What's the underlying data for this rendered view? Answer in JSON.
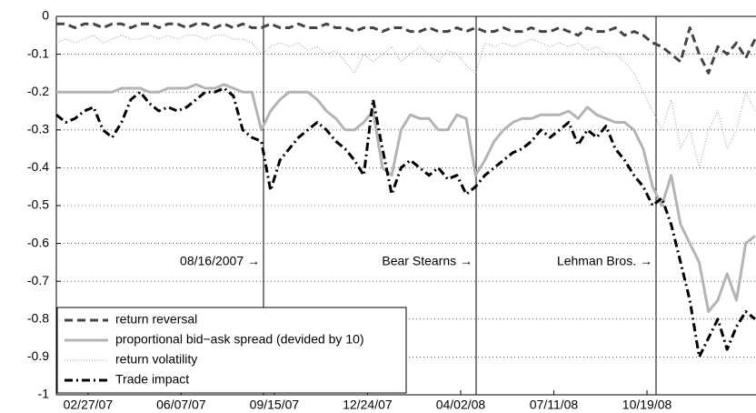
{
  "chart_data": {
    "type": "line",
    "x": [
      "2007-01-24",
      "2007-02-03",
      "2007-02-13",
      "2007-02-23",
      "2007-03-05",
      "2007-03-15",
      "2007-03-25",
      "2007-04-04",
      "2007-04-14",
      "2007-04-24",
      "2007-05-04",
      "2007-05-14",
      "2007-05-24",
      "2007-06-03",
      "2007-06-13",
      "2007-06-23",
      "2007-07-03",
      "2007-07-13",
      "2007-07-23",
      "2007-08-02",
      "2007-08-12",
      "2007-08-22",
      "2007-09-01",
      "2007-09-11",
      "2007-09-21",
      "2007-10-01",
      "2007-10-11",
      "2007-10-21",
      "2007-10-31",
      "2007-11-10",
      "2007-11-20",
      "2007-11-30",
      "2007-12-10",
      "2007-12-20",
      "2007-12-30",
      "2008-01-09",
      "2008-01-19",
      "2008-01-29",
      "2008-02-08",
      "2008-02-18",
      "2008-02-28",
      "2008-03-09",
      "2008-03-19",
      "2008-03-29",
      "2008-04-08",
      "2008-04-18",
      "2008-04-28",
      "2008-05-08",
      "2008-05-18",
      "2008-05-28",
      "2008-06-07",
      "2008-06-17",
      "2008-06-27",
      "2008-07-07",
      "2008-07-17",
      "2008-07-27",
      "2008-08-06",
      "2008-08-16",
      "2008-08-26",
      "2008-09-05",
      "2008-09-15",
      "2008-09-25",
      "2008-10-05",
      "2008-10-15",
      "2008-10-25",
      "2008-11-04",
      "2008-11-14",
      "2008-11-24",
      "2008-12-04",
      "2008-12-14",
      "2008-12-24",
      "2009-01-03",
      "2009-01-13",
      "2009-01-23",
      "2009-02-02",
      "2009-02-12"
    ],
    "xlim": [
      "2007-01-24",
      "2009-02-13"
    ],
    "xticks": [
      {
        "value": "2007-02-27",
        "label": "02/27/07"
      },
      {
        "value": "2007-06-07",
        "label": "06/07/07"
      },
      {
        "value": "2007-09-15",
        "label": "09/15/07"
      },
      {
        "value": "2007-12-24",
        "label": "12/24/07"
      },
      {
        "value": "2008-04-02",
        "label": "04/02/08"
      },
      {
        "value": "2008-07-11",
        "label": "07/11/08"
      },
      {
        "value": "2008-10-19",
        "label": "10/19/08"
      }
    ],
    "ylim": [
      -1,
      0
    ],
    "yticks": [
      0,
      -0.1,
      -0.2,
      -0.3,
      -0.4,
      -0.5,
      -0.6,
      -0.7,
      -0.8,
      -0.9,
      -1
    ],
    "grid": true,
    "legend": "lower left",
    "annotations": [
      {
        "text": "08/16/2007 →"
      },
      {
        "text": "Bear Stearns →"
      },
      {
        "text": "Lehman Bros. →"
      }
    ],
    "series": [
      {
        "name": "return reversal",
        "color": "#444444",
        "style": "dashed",
        "width": 3,
        "values": [
          -0.02,
          -0.02,
          -0.03,
          -0.02,
          -0.02,
          -0.03,
          -0.02,
          -0.02,
          -0.03,
          -0.02,
          -0.02,
          -0.03,
          -0.02,
          -0.02,
          -0.03,
          -0.02,
          -0.02,
          -0.03,
          -0.02,
          -0.03,
          -0.02,
          -0.03,
          -0.03,
          -0.02,
          -0.03,
          -0.03,
          -0.02,
          -0.03,
          -0.03,
          -0.02,
          -0.03,
          -0.03,
          -0.04,
          -0.03,
          -0.03,
          -0.04,
          -0.03,
          -0.03,
          -0.04,
          -0.04,
          -0.03,
          -0.04,
          -0.04,
          -0.03,
          -0.04,
          -0.03,
          -0.04,
          -0.04,
          -0.03,
          -0.04,
          -0.04,
          -0.03,
          -0.04,
          -0.04,
          -0.03,
          -0.04,
          -0.05,
          -0.03,
          -0.04,
          -0.04,
          -0.03,
          -0.05,
          -0.04,
          -0.05,
          -0.07,
          -0.08,
          -0.1,
          -0.12,
          -0.03,
          -0.1,
          -0.15,
          -0.08,
          -0.1,
          -0.07,
          -0.11,
          -0.06
        ]
      },
      {
        "name": "proportional bid−ask spread (devided by 10)",
        "color": "#b4b4b4",
        "style": "solid",
        "width": 3,
        "values": [
          -0.2,
          -0.2,
          -0.2,
          -0.2,
          -0.2,
          -0.2,
          -0.2,
          -0.19,
          -0.19,
          -0.19,
          -0.2,
          -0.2,
          -0.19,
          -0.19,
          -0.19,
          -0.18,
          -0.19,
          -0.19,
          -0.18,
          -0.19,
          -0.2,
          -0.2,
          -0.3,
          -0.25,
          -0.22,
          -0.2,
          -0.2,
          -0.2,
          -0.22,
          -0.25,
          -0.27,
          -0.3,
          -0.3,
          -0.28,
          -0.25,
          -0.4,
          -0.42,
          -0.3,
          -0.26,
          -0.27,
          -0.27,
          -0.3,
          -0.3,
          -0.26,
          -0.27,
          -0.42,
          -0.38,
          -0.33,
          -0.3,
          -0.28,
          -0.27,
          -0.27,
          -0.26,
          -0.26,
          -0.26,
          -0.25,
          -0.27,
          -0.24,
          -0.26,
          -0.27,
          -0.28,
          -0.28,
          -0.3,
          -0.35,
          -0.45,
          -0.5,
          -0.42,
          -0.55,
          -0.6,
          -0.65,
          -0.78,
          -0.75,
          -0.68,
          -0.75,
          -0.6,
          -0.58
        ]
      },
      {
        "name": "return volatility",
        "color": "#999999",
        "style": "dotted",
        "width": 1,
        "values": [
          -0.07,
          -0.06,
          -0.07,
          -0.06,
          -0.05,
          -0.07,
          -0.06,
          -0.05,
          -0.06,
          -0.06,
          -0.05,
          -0.06,
          -0.05,
          -0.06,
          -0.05,
          -0.05,
          -0.06,
          -0.05,
          -0.05,
          -0.06,
          -0.06,
          -0.07,
          -0.1,
          -0.08,
          -0.07,
          -0.08,
          -0.07,
          -0.09,
          -0.08,
          -0.1,
          -0.09,
          -0.12,
          -0.15,
          -0.1,
          -0.12,
          -0.1,
          -0.08,
          -0.12,
          -0.1,
          -0.08,
          -0.1,
          -0.12,
          -0.09,
          -0.1,
          -0.13,
          -0.15,
          -0.07,
          -0.08,
          -0.07,
          -0.08,
          -0.07,
          -0.06,
          -0.07,
          -0.08,
          -0.07,
          -0.08,
          -0.07,
          -0.09,
          -0.08,
          -0.1,
          -0.1,
          -0.12,
          -0.15,
          -0.2,
          -0.25,
          -0.3,
          -0.22,
          -0.35,
          -0.3,
          -0.4,
          -0.3,
          -0.25,
          -0.35,
          -0.3,
          -0.2,
          -0.25
        ]
      },
      {
        "name": "Trade impact",
        "color": "#000000",
        "style": "dashdot",
        "width": 3,
        "values": [
          -0.26,
          -0.28,
          -0.27,
          -0.25,
          -0.24,
          -0.3,
          -0.32,
          -0.28,
          -0.22,
          -0.2,
          -0.23,
          -0.25,
          -0.24,
          -0.25,
          -0.24,
          -0.22,
          -0.2,
          -0.2,
          -0.19,
          -0.21,
          -0.3,
          -0.32,
          -0.33,
          -0.46,
          -0.38,
          -0.35,
          -0.32,
          -0.3,
          -0.28,
          -0.3,
          -0.33,
          -0.35,
          -0.38,
          -0.42,
          -0.22,
          -0.35,
          -0.47,
          -0.4,
          -0.38,
          -0.4,
          -0.42,
          -0.4,
          -0.43,
          -0.42,
          -0.47,
          -0.45,
          -0.42,
          -0.4,
          -0.38,
          -0.36,
          -0.35,
          -0.33,
          -0.3,
          -0.32,
          -0.3,
          -0.28,
          -0.34,
          -0.3,
          -0.32,
          -0.29,
          -0.35,
          -0.38,
          -0.42,
          -0.45,
          -0.5,
          -0.48,
          -0.55,
          -0.65,
          -0.75,
          -0.9,
          -0.85,
          -0.8,
          -0.88,
          -0.82,
          -0.78,
          -0.8
        ]
      }
    ]
  }
}
